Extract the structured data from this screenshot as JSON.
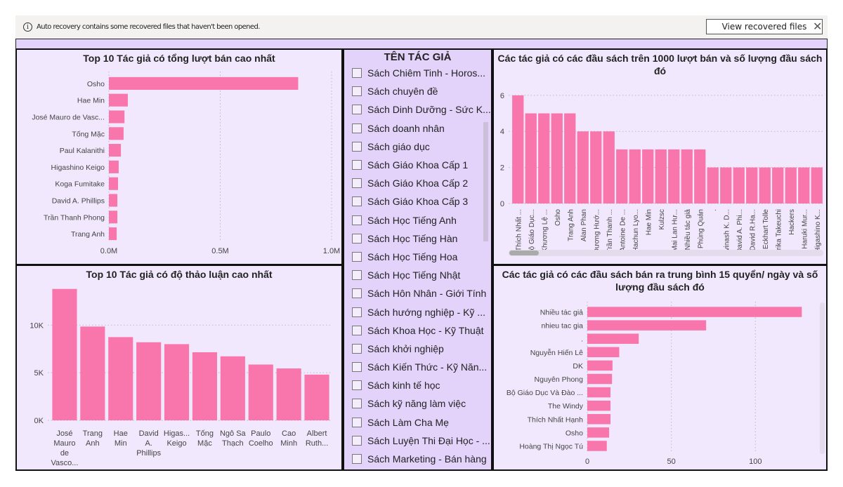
{
  "notification": {
    "icon": "info-icon",
    "message": "Auto recovery contains some recovered files that haven't been opened.",
    "button": "View recovered files",
    "close": "✕"
  },
  "colors": {
    "bar": "#f876ab",
    "panel_bg": "#f1e8fd",
    "slicer_bg": "#e3d2fa"
  },
  "slicer": {
    "title": "TÊN TÁC GIẢ",
    "items": [
      "Sách Chiêm Tinh - Horos...",
      "Sách chuyên đề",
      "Sách Dinh Dưỡng - Sức K...",
      "Sách doanh nhân",
      "Sách giáo dục",
      "Sách Giáo Khoa Cấp 1",
      "Sách Giáo Khoa Cấp 2",
      "Sách Giáo Khoa Cấp 3",
      "Sách Học Tiếng Anh",
      "Sách Học Tiếng Hàn",
      "Sách Học Tiếng Hoa",
      "Sách Học Tiếng Nhật",
      "Sách Hôn Nhân - Giới Tính",
      "Sách hướng nghiệp - Kỹ ...",
      "Sách Khoa Học - Kỹ Thuật",
      "Sách khởi nghiệp",
      "Sách Kiến Thức - Kỹ Năn...",
      "Sách kinh tế học",
      "Sách kỹ năng làm việc",
      "Sách Làm Cha Mẹ",
      "Sách Luyện Thi Đại Học - ...",
      "Sách Marketing - Bán hàng"
    ]
  },
  "chart_data": [
    {
      "type": "bar",
      "orientation": "horizontal",
      "title": "Top 10 Tác giả có tổng lượt bán cao nhất",
      "categories": [
        "Osho",
        "Hae Min",
        "José Mauro de Vasc...",
        "Tống Mặc",
        "Paul Kalanithi",
        "Higashino Keigo",
        "Koga Fumitake",
        "David A. Phillips",
        "Trần Thanh Phong",
        "Trang Anh"
      ],
      "values": [
        0.85,
        0.085,
        0.07,
        0.066,
        0.054,
        0.044,
        0.041,
        0.038,
        0.038,
        0.035
      ],
      "xlim": [
        0,
        1.0
      ],
      "ticks": [
        0,
        0.5,
        1.0
      ],
      "tick_labels": [
        "0.0M",
        "0.5M",
        "1.0M"
      ],
      "grid": true
    },
    {
      "type": "bar",
      "orientation": "vertical",
      "title": "Top 10 Tác giả có độ thảo luận cao nhất",
      "categories": [
        [
          "José",
          "Mauro",
          "de",
          "Vasco..."
        ],
        [
          "Trang",
          "Anh"
        ],
        [
          "Hae",
          "Min"
        ],
        [
          "David",
          "A.",
          "Phillips"
        ],
        [
          "Higas...",
          "Keigo"
        ],
        [
          "Tống",
          "Mặc"
        ],
        [
          "Ngô Sa",
          "Thạch"
        ],
        [
          "Paulo",
          "Coelho"
        ],
        [
          "Cao",
          "Minh"
        ],
        [
          "Albert",
          "Ruth..."
        ]
      ],
      "values": [
        13800,
        9850,
        8740,
        8200,
        8000,
        7150,
        6720,
        5860,
        5450,
        4800
      ],
      "ylim": [
        0,
        14000
      ],
      "ticks": [
        0,
        5000,
        10000
      ],
      "tick_labels": [
        "0K",
        "5K",
        "10K"
      ],
      "grid": true
    },
    {
      "type": "bar",
      "orientation": "vertical",
      "title": "Các tác giả có các đầu sách trên 1000 lượt bán và số lượng đầu sách đó",
      "categories": [
        "Thích Nhất ...",
        "Bộ Giáo Dục...",
        "Khương Lệ ...",
        "Osho",
        "Trang Anh",
        "Alan Phan",
        "Dương Hướ...",
        "Trần Thanh ...",
        "Antoine De ...",
        "Hachun Lyo...",
        "Hae Min",
        "Kulzsc",
        "Mai Lan Hư...",
        "Nhiều tác giả",
        "Phùng Quán",
        ".",
        "Avinash K. D...",
        "David A. Phi...",
        "David R.Ha...",
        "Eckhart Tolle",
        "Erika Takeuchi",
        "Hackers",
        "Haruki Mur...",
        "Higashino K..."
      ],
      "values": [
        6,
        5,
        5,
        5,
        5,
        4,
        4,
        4,
        3,
        3,
        3,
        3,
        3,
        3,
        3,
        2,
        2,
        2,
        2,
        2,
        2,
        2,
        2,
        2
      ],
      "ylim": [
        0,
        6.5
      ],
      "ticks": [
        0,
        2,
        4,
        6
      ],
      "tick_labels": [
        "0",
        "2",
        "4",
        "6"
      ],
      "grid": true
    },
    {
      "type": "bar",
      "orientation": "horizontal",
      "title": "Các tác giả có các đầu sách bán ra trung bình 15 quyển/ ngày và số lượng đầu sách đó",
      "categories": [
        "Nhiều tác giả",
        "nhieu tac gia",
        ".",
        "Nguyễn Hiến Lê",
        "DK",
        "Nguyên Phong",
        "Bộ Giáo Dục Và Đào ...",
        "The Windy",
        "Thích Nhất Hạnh",
        "Osho",
        "Hoàng Thị Ngọc Tú"
      ],
      "values": [
        127.6,
        70.7,
        30.6,
        19,
        15,
        14.7,
        13.8,
        13.8,
        13.8,
        13,
        11.6
      ],
      "xlim": [
        0,
        140
      ],
      "ticks": [
        0,
        50,
        100
      ],
      "tick_labels": [
        "0",
        "50",
        "100"
      ],
      "grid": true
    }
  ]
}
